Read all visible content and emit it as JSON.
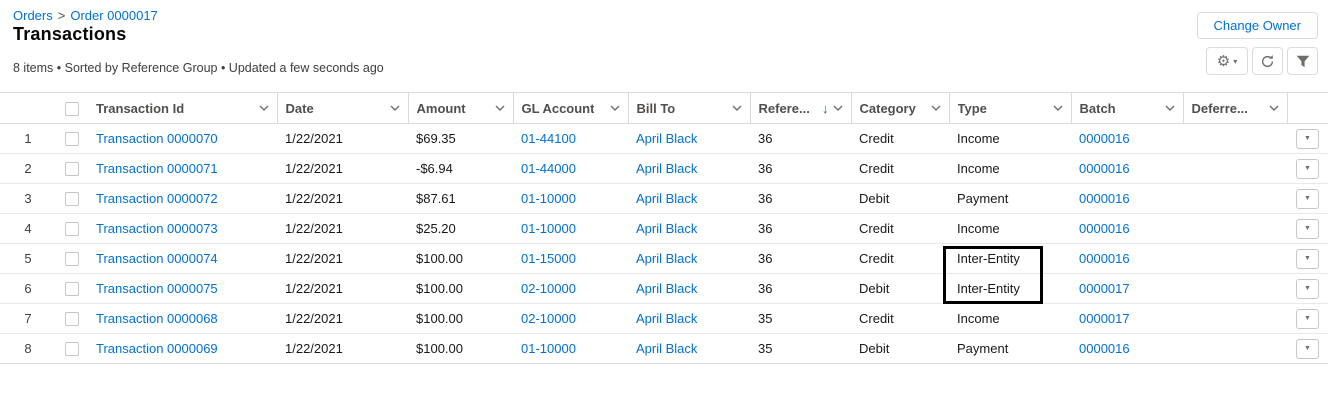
{
  "header": {
    "breadcrumb": {
      "parent": "Orders",
      "separator": ">",
      "current": "Order 0000017"
    },
    "title": "Transactions",
    "meta": "8 items • Sorted by Reference Group • Updated a few seconds ago",
    "change_owner_label": "Change Owner",
    "icon_buttons": [
      {
        "name": "list-view-settings",
        "icon": "gear-icon"
      },
      {
        "name": "refresh",
        "icon": "refresh-icon"
      },
      {
        "name": "filter",
        "icon": "filter-icon"
      }
    ]
  },
  "table": {
    "columns": [
      {
        "key": "transaction_id",
        "label": "Transaction Id"
      },
      {
        "key": "date",
        "label": "Date"
      },
      {
        "key": "amount",
        "label": "Amount"
      },
      {
        "key": "gl_account",
        "label": "GL Account"
      },
      {
        "key": "bill_to",
        "label": "Bill To"
      },
      {
        "key": "reference",
        "label": "Refere...",
        "sorted": true,
        "sort_direction": "descending"
      },
      {
        "key": "category",
        "label": "Category"
      },
      {
        "key": "type",
        "label": "Type"
      },
      {
        "key": "batch",
        "label": "Batch"
      },
      {
        "key": "deferred",
        "label": "Deferre..."
      }
    ],
    "link_columns": [
      "transaction_id",
      "gl_account",
      "bill_to",
      "batch"
    ],
    "rows": [
      {
        "num": "1",
        "transaction_id": "Transaction 0000070",
        "date": "1/22/2021",
        "amount": "$69.35",
        "gl_account": "01-44100",
        "bill_to": "April Black",
        "reference": "36",
        "category": "Credit",
        "type": "Income",
        "batch": "0000016",
        "deferred": ""
      },
      {
        "num": "2",
        "transaction_id": "Transaction 0000071",
        "date": "1/22/2021",
        "amount": "-$6.94",
        "gl_account": "01-44000",
        "bill_to": "April Black",
        "reference": "36",
        "category": "Credit",
        "type": "Income",
        "batch": "0000016",
        "deferred": ""
      },
      {
        "num": "3",
        "transaction_id": "Transaction 0000072",
        "date": "1/22/2021",
        "amount": "$87.61",
        "gl_account": "01-10000",
        "bill_to": "April Black",
        "reference": "36",
        "category": "Debit",
        "type": "Payment",
        "batch": "0000016",
        "deferred": ""
      },
      {
        "num": "4",
        "transaction_id": "Transaction 0000073",
        "date": "1/22/2021",
        "amount": "$25.20",
        "gl_account": "01-10000",
        "bill_to": "April Black",
        "reference": "36",
        "category": "Credit",
        "type": "Income",
        "batch": "0000016",
        "deferred": ""
      },
      {
        "num": "5",
        "transaction_id": "Transaction 0000074",
        "date": "1/22/2021",
        "amount": "$100.00",
        "gl_account": "01-15000",
        "bill_to": "April Black",
        "reference": "36",
        "category": "Credit",
        "type": "Inter-Entity",
        "batch": "0000016",
        "deferred": ""
      },
      {
        "num": "6",
        "transaction_id": "Transaction 0000075",
        "date": "1/22/2021",
        "amount": "$100.00",
        "gl_account": "02-10000",
        "bill_to": "April Black",
        "reference": "36",
        "category": "Debit",
        "type": "Inter-Entity",
        "batch": "0000017",
        "deferred": ""
      },
      {
        "num": "7",
        "transaction_id": "Transaction 0000068",
        "date": "1/22/2021",
        "amount": "$100.00",
        "gl_account": "02-10000",
        "bill_to": "April Black",
        "reference": "35",
        "category": "Credit",
        "type": "Income",
        "batch": "0000017",
        "deferred": ""
      },
      {
        "num": "8",
        "transaction_id": "Transaction 0000069",
        "date": "1/22/2021",
        "amount": "$100.00",
        "gl_account": "01-10000",
        "bill_to": "April Black",
        "reference": "35",
        "category": "Debit",
        "type": "Payment",
        "batch": "0000016",
        "deferred": ""
      }
    ]
  },
  "annotation": {
    "target": "Type column, rows 5-6 (Inter-Entity)",
    "style": "black box outline",
    "color": "#000000"
  },
  "colors": {
    "link": "#0070d2",
    "header_text": "#514f4d",
    "body_text": "#181818",
    "border": "#dddbda",
    "icon": "#706e6b",
    "sort_arrow": "#0b5cab"
  }
}
